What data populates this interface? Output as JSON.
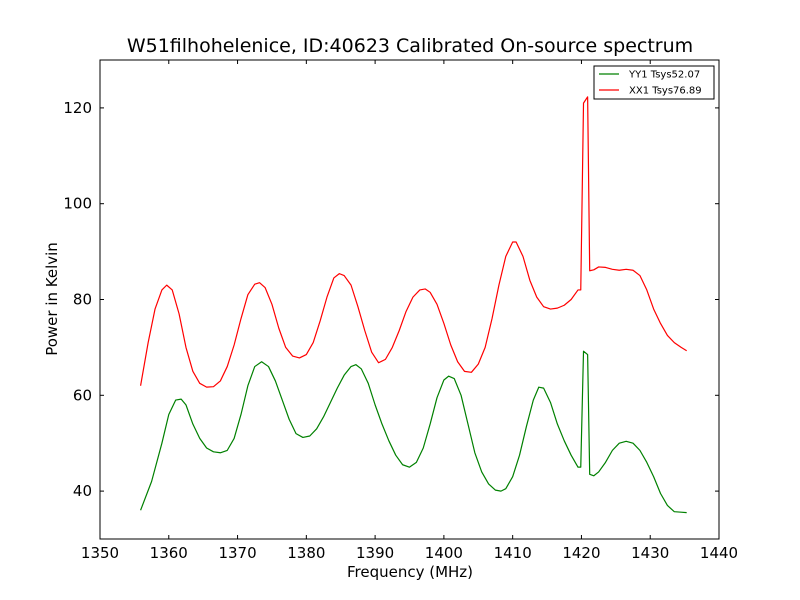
{
  "chart_data": {
    "type": "line",
    "title": "W51filhohelenice, ID:40623 Calibrated On-source spectrum",
    "xlabel": "Frequency (MHz)",
    "ylabel": "Power in Kelvin",
    "xlim": [
      1350,
      1440
    ],
    "ylim": [
      30,
      130
    ],
    "xticks": [
      1350,
      1360,
      1370,
      1380,
      1390,
      1400,
      1410,
      1420,
      1430,
      1440
    ],
    "yticks": [
      40,
      60,
      80,
      100,
      120
    ],
    "grid": false,
    "legend_position": "top-right",
    "series": [
      {
        "name": "YY1 Tsys52.07",
        "color": "#008000",
        "points": [
          [
            1355.9,
            36
          ],
          [
            1357.5,
            42
          ],
          [
            1359.0,
            50
          ],
          [
            1360.0,
            56
          ],
          [
            1361.0,
            59
          ],
          [
            1361.8,
            59.2
          ],
          [
            1362.5,
            58
          ],
          [
            1363.5,
            54
          ],
          [
            1364.5,
            51
          ],
          [
            1365.5,
            49
          ],
          [
            1366.5,
            48.2
          ],
          [
            1367.5,
            48
          ],
          [
            1368.5,
            48.5
          ],
          [
            1369.5,
            51
          ],
          [
            1370.5,
            56
          ],
          [
            1371.5,
            62
          ],
          [
            1372.5,
            66
          ],
          [
            1373.5,
            67
          ],
          [
            1374.5,
            66
          ],
          [
            1375.5,
            63
          ],
          [
            1376.5,
            59
          ],
          [
            1377.5,
            55
          ],
          [
            1378.5,
            52
          ],
          [
            1379.5,
            51.2
          ],
          [
            1380.5,
            51.5
          ],
          [
            1381.5,
            53
          ],
          [
            1382.5,
            55.5
          ],
          [
            1383.5,
            58.5
          ],
          [
            1384.5,
            61.5
          ],
          [
            1385.5,
            64.2
          ],
          [
            1386.5,
            66
          ],
          [
            1387.2,
            66.4
          ],
          [
            1388.0,
            65.5
          ],
          [
            1389.0,
            62.5
          ],
          [
            1390.0,
            58
          ],
          [
            1391.0,
            54
          ],
          [
            1392.0,
            50.5
          ],
          [
            1393.0,
            47.5
          ],
          [
            1394.0,
            45.5
          ],
          [
            1395.0,
            45
          ],
          [
            1396.0,
            46
          ],
          [
            1397.0,
            49
          ],
          [
            1398.0,
            54
          ],
          [
            1399.0,
            59.5
          ],
          [
            1400.0,
            63.2
          ],
          [
            1400.7,
            64
          ],
          [
            1401.5,
            63.5
          ],
          [
            1402.5,
            60
          ],
          [
            1403.5,
            54
          ],
          [
            1404.5,
            48
          ],
          [
            1405.5,
            44
          ],
          [
            1406.5,
            41.5
          ],
          [
            1407.5,
            40.2
          ],
          [
            1408.3,
            40
          ],
          [
            1409.0,
            40.5
          ],
          [
            1410.0,
            43
          ],
          [
            1411.0,
            47.5
          ],
          [
            1412.0,
            53.5
          ],
          [
            1413.0,
            59
          ],
          [
            1413.8,
            61.7
          ],
          [
            1414.5,
            61.5
          ],
          [
            1415.5,
            58.5
          ],
          [
            1416.5,
            54
          ],
          [
            1417.5,
            50.5
          ],
          [
            1418.5,
            47.5
          ],
          [
            1419.5,
            45
          ],
          [
            1419.9,
            45
          ],
          [
            1420.3,
            69.2
          ],
          [
            1420.9,
            68.5
          ],
          [
            1421.2,
            43.5
          ],
          [
            1421.8,
            43.2
          ],
          [
            1422.5,
            44
          ],
          [
            1423.5,
            46
          ],
          [
            1424.5,
            48.5
          ],
          [
            1425.5,
            50
          ],
          [
            1426.5,
            50.4
          ],
          [
            1427.5,
            50
          ],
          [
            1428.5,
            48.5
          ],
          [
            1429.5,
            46
          ],
          [
            1430.5,
            43
          ],
          [
            1431.5,
            39.5
          ],
          [
            1432.5,
            37
          ],
          [
            1433.5,
            35.7
          ],
          [
            1434.5,
            35.6
          ],
          [
            1435.3,
            35.5
          ]
        ]
      },
      {
        "name": "XX1 Tsys76.89",
        "color": "#ff0000",
        "points": [
          [
            1355.9,
            62
          ],
          [
            1357.0,
            71
          ],
          [
            1358.0,
            78
          ],
          [
            1359.0,
            82
          ],
          [
            1359.7,
            83
          ],
          [
            1360.5,
            82
          ],
          [
            1361.5,
            77
          ],
          [
            1362.5,
            70
          ],
          [
            1363.5,
            65
          ],
          [
            1364.5,
            62.5
          ],
          [
            1365.5,
            61.7
          ],
          [
            1366.5,
            61.8
          ],
          [
            1367.5,
            63
          ],
          [
            1368.5,
            66
          ],
          [
            1369.5,
            70.5
          ],
          [
            1370.5,
            76
          ],
          [
            1371.5,
            81
          ],
          [
            1372.5,
            83.2
          ],
          [
            1373.2,
            83.5
          ],
          [
            1374.0,
            82.5
          ],
          [
            1375.0,
            79
          ],
          [
            1376.0,
            74
          ],
          [
            1377.0,
            70
          ],
          [
            1378.0,
            68.2
          ],
          [
            1379.0,
            67.8
          ],
          [
            1380.0,
            68.5
          ],
          [
            1381.0,
            71
          ],
          [
            1382.0,
            75.5
          ],
          [
            1383.0,
            80.5
          ],
          [
            1384.0,
            84.5
          ],
          [
            1384.8,
            85.4
          ],
          [
            1385.5,
            85
          ],
          [
            1386.5,
            83
          ],
          [
            1387.5,
            78.5
          ],
          [
            1388.5,
            73.5
          ],
          [
            1389.5,
            69
          ],
          [
            1390.5,
            66.8
          ],
          [
            1391.5,
            67.5
          ],
          [
            1392.5,
            70
          ],
          [
            1393.5,
            73.5
          ],
          [
            1394.5,
            77.5
          ],
          [
            1395.5,
            80.5
          ],
          [
            1396.5,
            82
          ],
          [
            1397.3,
            82.2
          ],
          [
            1398.0,
            81.5
          ],
          [
            1399.0,
            79
          ],
          [
            1400.0,
            75
          ],
          [
            1401.0,
            70.5
          ],
          [
            1402.0,
            67
          ],
          [
            1403.0,
            65
          ],
          [
            1404.0,
            64.8
          ],
          [
            1405.0,
            66.5
          ],
          [
            1406.0,
            70
          ],
          [
            1407.0,
            76
          ],
          [
            1408.0,
            83
          ],
          [
            1409.0,
            89
          ],
          [
            1410.0,
            92
          ],
          [
            1410.5,
            92
          ],
          [
            1411.5,
            89
          ],
          [
            1412.5,
            84
          ],
          [
            1413.5,
            80.5
          ],
          [
            1414.5,
            78.5
          ],
          [
            1415.5,
            78
          ],
          [
            1416.5,
            78.2
          ],
          [
            1417.5,
            78.8
          ],
          [
            1418.5,
            80
          ],
          [
            1419.5,
            82
          ],
          [
            1419.9,
            82
          ],
          [
            1420.3,
            121
          ],
          [
            1420.9,
            122.3
          ],
          [
            1421.2,
            86
          ],
          [
            1421.8,
            86.2
          ],
          [
            1422.5,
            86.8
          ],
          [
            1423.5,
            86.7
          ],
          [
            1424.5,
            86.3
          ],
          [
            1425.5,
            86.1
          ],
          [
            1426.5,
            86.3
          ],
          [
            1427.5,
            86.1
          ],
          [
            1428.5,
            85
          ],
          [
            1429.5,
            82
          ],
          [
            1430.5,
            78
          ],
          [
            1431.5,
            75
          ],
          [
            1432.5,
            72.5
          ],
          [
            1433.5,
            71
          ],
          [
            1434.5,
            70
          ],
          [
            1435.3,
            69.3
          ]
        ]
      }
    ]
  }
}
